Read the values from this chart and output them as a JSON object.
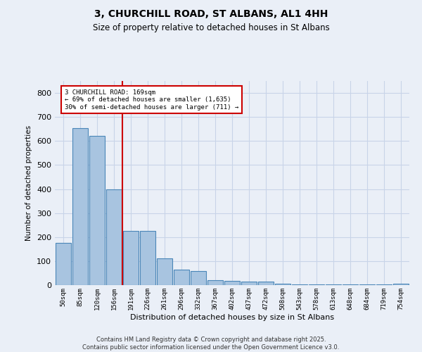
{
  "title": "3, CHURCHILL ROAD, ST ALBANS, AL1 4HH",
  "subtitle": "Size of property relative to detached houses in St Albans",
  "xlabel": "Distribution of detached houses by size in St Albans",
  "ylabel": "Number of detached properties",
  "categories": [
    "50sqm",
    "85sqm",
    "120sqm",
    "156sqm",
    "191sqm",
    "226sqm",
    "261sqm",
    "296sqm",
    "332sqm",
    "367sqm",
    "402sqm",
    "437sqm",
    "472sqm",
    "508sqm",
    "543sqm",
    "578sqm",
    "613sqm",
    "648sqm",
    "684sqm",
    "719sqm",
    "754sqm"
  ],
  "values": [
    175,
    655,
    620,
    400,
    225,
    225,
    110,
    65,
    60,
    20,
    18,
    15,
    15,
    7,
    4,
    4,
    4,
    3,
    2,
    2,
    5
  ],
  "bar_color": "#a8c4e0",
  "bar_edge_color": "#4a86b8",
  "vline_color": "#cc0000",
  "annotation_text": "3 CHURCHILL ROAD: 169sqm\n← 69% of detached houses are smaller (1,635)\n30% of semi-detached houses are larger (711) →",
  "grid_color": "#c8d4e8",
  "bg_color": "#eaeff7",
  "footer": "Contains HM Land Registry data © Crown copyright and database right 2025.\nContains public sector information licensed under the Open Government Licence v3.0.",
  "ylim": [
    0,
    850
  ],
  "yticks": [
    0,
    100,
    200,
    300,
    400,
    500,
    600,
    700,
    800
  ]
}
